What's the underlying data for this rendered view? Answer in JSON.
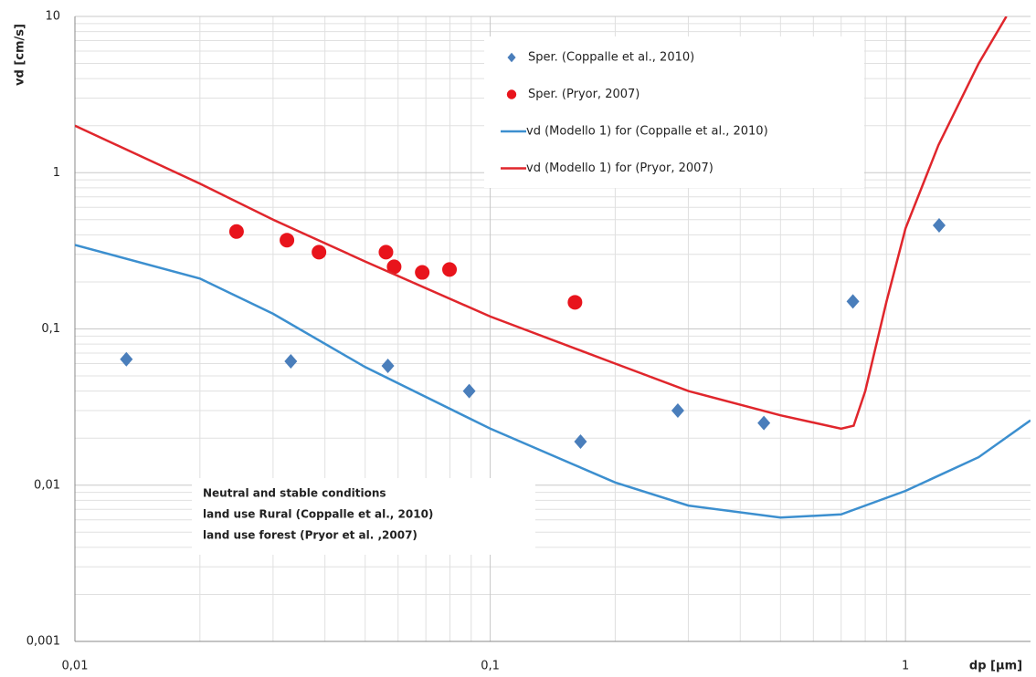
{
  "chart_data": {
    "type": "line",
    "xlabel": "dp [µm]",
    "ylabel": "vd [cm/s]",
    "xscale": "log",
    "yscale": "log",
    "xlim": [
      0.01,
      2
    ],
    "ylim": [
      0.001,
      10
    ],
    "xticks": [
      {
        "value": 0.01,
        "label": "0,01"
      },
      {
        "value": 0.1,
        "label": "0,1"
      },
      1
    ],
    "yticks": [
      {
        "value": 0.001,
        "label": "0,001"
      },
      {
        "value": 0.01,
        "label": "0,01"
      },
      {
        "value": 0.1,
        "label": "0,1"
      },
      1,
      10
    ],
    "grid": true,
    "legend": "upper right",
    "series": [
      {
        "name": "Sper. (Coppalle et al., 2010)",
        "type": "scatter",
        "marker": "diamond",
        "color": "#4a7ebb",
        "x": [
          0.0133,
          0.0331,
          0.0567,
          0.089,
          0.165,
          0.283,
          0.456,
          0.747,
          1.205
        ],
        "values": [
          0.064,
          0.062,
          0.058,
          0.04,
          0.019,
          0.03,
          0.025,
          0.15,
          0.46
        ]
      },
      {
        "name": "Sper. (Pryor, 2007)",
        "type": "scatter",
        "marker": "circle",
        "color": "#e8141c",
        "x": [
          0.0245,
          0.0324,
          0.0387,
          0.0561,
          0.0587,
          0.0686,
          0.0798,
          0.16
        ],
        "values": [
          0.42,
          0.37,
          0.31,
          0.31,
          0.25,
          0.23,
          0.24,
          0.148
        ]
      },
      {
        "name": "vd (Modello 1) for (Coppalle et al., 2010)",
        "type": "line",
        "color": "#3c8fcf",
        "x": [
          0.01,
          0.02,
          0.03,
          0.05,
          0.1,
          0.2,
          0.3,
          0.5,
          0.7,
          1,
          1.5,
          2
        ],
        "values": [
          0.345,
          0.21,
          0.125,
          0.057,
          0.023,
          0.0104,
          0.0074,
          0.0062,
          0.0065,
          0.0092,
          0.0151,
          0.026
        ]
      },
      {
        "name": "vd (Modello 1)  for (Pryor, 2007)",
        "type": "line",
        "color": "#e0262c",
        "x": [
          0.01,
          0.02,
          0.03,
          0.05,
          0.1,
          0.2,
          0.3,
          0.5,
          0.7,
          0.75,
          0.8,
          0.9,
          1,
          1.2,
          1.5,
          1.75
        ],
        "values": [
          2.0,
          0.85,
          0.5,
          0.27,
          0.12,
          0.06,
          0.04,
          0.028,
          0.023,
          0.024,
          0.04,
          0.15,
          0.44,
          1.5,
          5,
          10
        ]
      }
    ],
    "annotation": [
      "Neutral and stable conditions",
      "land use  Rural (Coppalle et al., 2010)",
      "land use   forest (Pryor et al. ,2007)"
    ]
  }
}
